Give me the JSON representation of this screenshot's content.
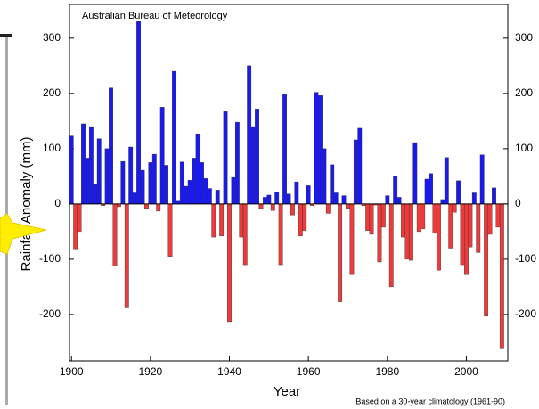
{
  "chart_data": {
    "type": "bar",
    "title": "Australian Bureau of Meteorology",
    "y_label": "Rainfall Anomaly (mm)",
    "x_label": "Year",
    "note": "Based on a 30-year climatology (1961-90)",
    "x": [
      1900,
      1901,
      1902,
      1903,
      1904,
      1905,
      1906,
      1907,
      1908,
      1909,
      1910,
      1911,
      1912,
      1913,
      1914,
      1915,
      1916,
      1917,
      1918,
      1919,
      1920,
      1921,
      1922,
      1923,
      1924,
      1925,
      1926,
      1927,
      1928,
      1929,
      1930,
      1931,
      1932,
      1933,
      1934,
      1935,
      1936,
      1937,
      1938,
      1939,
      1940,
      1941,
      1942,
      1943,
      1944,
      1945,
      1946,
      1947,
      1948,
      1949,
      1950,
      1951,
      1952,
      1953,
      1954,
      1955,
      1956,
      1957,
      1958,
      1959,
      1960,
      1961,
      1962,
      1963,
      1964,
      1965,
      1966,
      1967,
      1968,
      1969,
      1970,
      1971,
      1972,
      1973,
      1974,
      1975,
      1976,
      1977,
      1978,
      1979,
      1980,
      1981,
      1982,
      1983,
      1984,
      1985,
      1986,
      1987,
      1988,
      1989,
      1990,
      1991,
      1992,
      1993,
      1994,
      1995,
      1996,
      1997,
      1998,
      1999,
      2000,
      2001,
      2002,
      2003,
      2004,
      2005,
      2006,
      2007,
      2008,
      2009
    ],
    "values": [
      123,
      -83,
      -50,
      145,
      83,
      140,
      35,
      118,
      -3,
      100,
      210,
      -112,
      -5,
      77,
      -188,
      103,
      20,
      330,
      61,
      -8,
      75,
      90,
      -13,
      175,
      70,
      -95,
      240,
      5,
      76,
      32,
      43,
      83,
      127,
      75,
      46,
      28,
      -60,
      25,
      -58,
      167,
      -213,
      48,
      148,
      -60,
      -110,
      250,
      140,
      172,
      -8,
      12,
      16,
      -12,
      22,
      -110,
      198,
      18,
      -20,
      40,
      -58,
      -48,
      33,
      -3,
      202,
      196,
      100,
      -17,
      71,
      20,
      -177,
      15,
      -8,
      -128,
      116,
      137,
      -3,
      -48,
      -55,
      -2,
      -105,
      -42,
      15,
      -150,
      50,
      12,
      -60,
      -100,
      -102,
      111,
      -50,
      -45,
      45,
      55,
      -52,
      -120,
      8,
      84,
      -80,
      -15,
      42,
      -110,
      -128,
      -78,
      20,
      -88,
      89,
      -203,
      -55,
      29,
      -42,
      -262
    ],
    "positive_color": "#1a1aee",
    "negative_color": "#ee3a3a",
    "xlim": [
      1899.5,
      2010.5
    ],
    "xticks": [
      1900,
      1920,
      1940,
      1960,
      1980,
      2000
    ],
    "ylim": [
      -284,
      361
    ],
    "yticks": [
      -200,
      -100,
      0,
      100,
      200,
      300
    ]
  }
}
